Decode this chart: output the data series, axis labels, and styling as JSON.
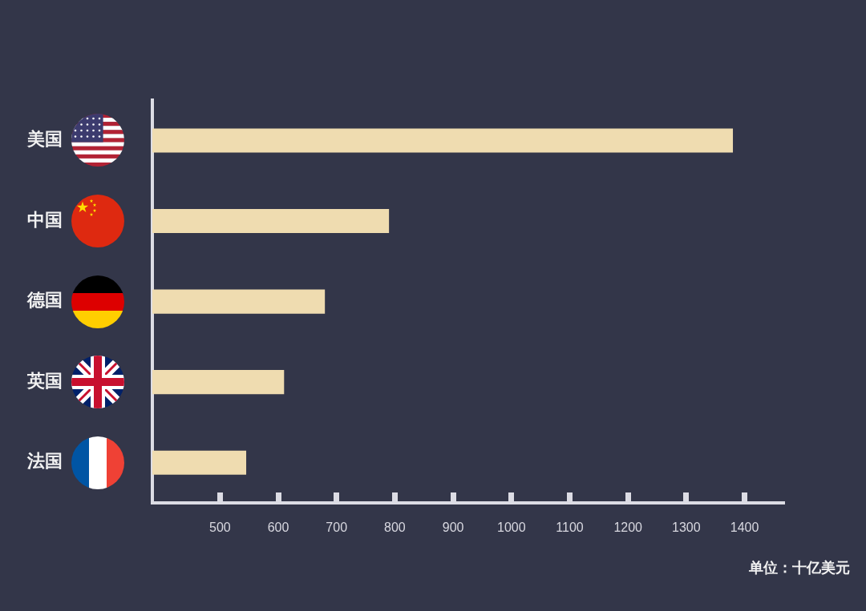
{
  "chart_data": {
    "type": "bar",
    "orientation": "horizontal",
    "categories": [
      "美国",
      "中国",
      "德国",
      "英国",
      "法国"
    ],
    "values": [
      1380,
      790,
      680,
      610,
      545
    ],
    "color": "#efdcb0",
    "xlim": [
      384,
      1468
    ],
    "xticks": [
      500,
      600,
      700,
      800,
      900,
      1000,
      1100,
      1200,
      1300,
      1400
    ],
    "xlabel": "单位：十亿美元"
  }
}
